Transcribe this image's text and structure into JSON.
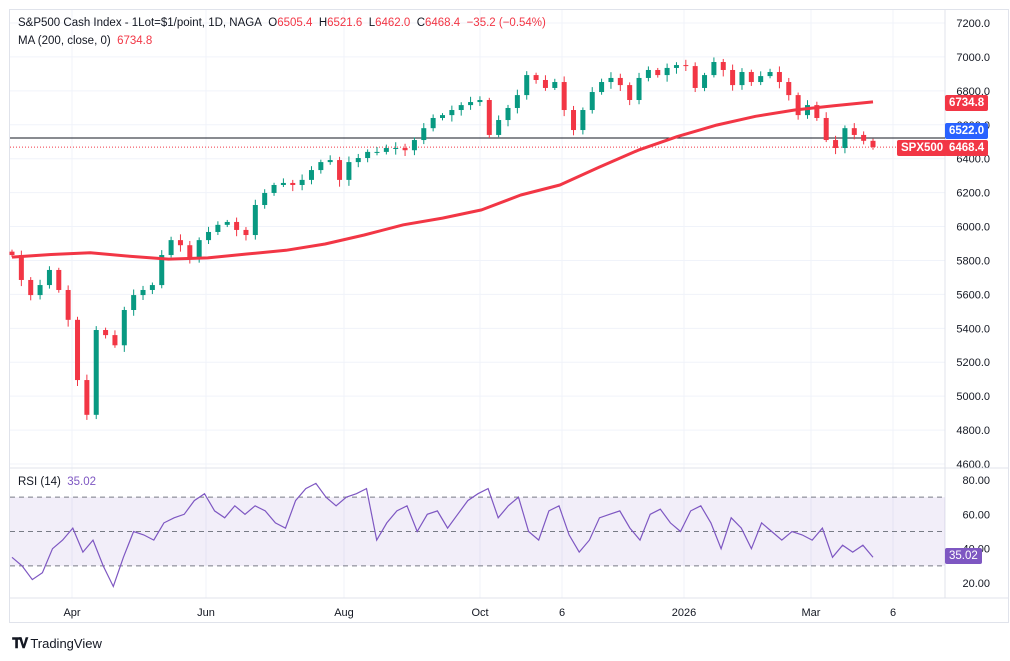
{
  "header": {
    "symbol_title": "S&P500 Cash Index - 1Lot=$1/point, 1D, NAGA",
    "o_label": "O",
    "o_value": "6505.4",
    "h_label": "H",
    "h_value": "6521.6",
    "l_label": "L",
    "l_value": "6462.0",
    "c_label": "C",
    "c_value": "6468.4",
    "change": "−35.2 (−0.54%)",
    "ma_title": "MA (200, close, 0)",
    "ma_value": "6734.8"
  },
  "price_tags": {
    "ma": "6734.8",
    "crosshair": "6522.0",
    "symbol": "SPX500",
    "last": "6468.4"
  },
  "rsi": {
    "title": "RSI (14)",
    "value": "35.02"
  },
  "footer": {
    "brand": "TradingView"
  },
  "colors": {
    "up": "#089981",
    "down": "#f23645",
    "ma": "#f23645",
    "rsi": "#7e57c2",
    "crosshair_tag": "#2962ff"
  },
  "chart_data": [
    {
      "type": "candlestick",
      "series_name": "S&P500 Cash Index",
      "ylim": [
        4600,
        7200
      ],
      "y_ticks": [
        "7200.0",
        "7000.0",
        "6800.0",
        "6600.0",
        "6400.0",
        "6200.0",
        "6000.0",
        "5800.0",
        "5600.0",
        "5400.0",
        "5200.0",
        "5000.0",
        "4800.0",
        "4600.0"
      ],
      "x_ticks": [
        "Apr",
        "Jun",
        "Aug",
        "Oct",
        "6",
        "2026",
        "Mar",
        "6"
      ],
      "grid": true,
      "close": [
        5832,
        5685,
        5596,
        5655,
        5744,
        5626,
        5450,
        5095,
        4890,
        5390,
        5360,
        5300,
        5508,
        5596,
        5626,
        5655,
        5832,
        5920,
        5890,
        5815,
        5920,
        5968,
        6010,
        6027,
        5980,
        5950,
        6127,
        6198,
        6245,
        6257,
        6245,
        6275,
        6333,
        6380,
        6392,
        6275,
        6380,
        6404,
        6440,
        6440,
        6463,
        6463,
        6450,
        6510,
        6580,
        6640,
        6657,
        6687,
        6716,
        6734,
        6746,
        6540,
        6628,
        6699,
        6775,
        6893,
        6864,
        6817,
        6852,
        6687,
        6569,
        6687,
        6793,
        6852,
        6876,
        6834,
        6746,
        6876,
        6923,
        6893,
        6935,
        6952,
        6946,
        6817,
        6893,
        6970,
        6923,
        6834,
        6911,
        6852,
        6887,
        6911,
        6852,
        6775,
        6657,
        6716,
        6640,
        6510,
        6463,
        6580,
        6540,
        6505.4,
        6468.4
      ],
      "ma200": [
        5820,
        5835,
        5845,
        5825,
        5808,
        5815,
        5838,
        5860,
        5897,
        5950,
        6010,
        6050,
        6098,
        6186,
        6245,
        6350,
        6450,
        6530,
        6598,
        6650,
        6687,
        6712,
        6734.8
      ],
      "horizontal_line": 6522.0
    },
    {
      "type": "line",
      "series_name": "RSI (14)",
      "ylim": [
        15,
        83
      ],
      "y_ticks": [
        "80.00",
        "60.00",
        "40.00",
        "20.00"
      ],
      "bands": [
        70,
        50,
        30
      ],
      "values": [
        35,
        30,
        22,
        26,
        40,
        45,
        52,
        38,
        45,
        30,
        18,
        35,
        50,
        48,
        45,
        55,
        58,
        60,
        68,
        72,
        62,
        58,
        65,
        60,
        65,
        62,
        55,
        52,
        68,
        75,
        78,
        70,
        65,
        70,
        72,
        75,
        45,
        55,
        62,
        65,
        50,
        60,
        62,
        52,
        60,
        68,
        72,
        75,
        58,
        65,
        70,
        50,
        45,
        62,
        65,
        48,
        38,
        45,
        58,
        60,
        62,
        52,
        45,
        60,
        63,
        55,
        50,
        62,
        65,
        55,
        40,
        58,
        52,
        40,
        55,
        50,
        45,
        50,
        48,
        45,
        52,
        35,
        42,
        38,
        42,
        35.02
      ]
    }
  ]
}
